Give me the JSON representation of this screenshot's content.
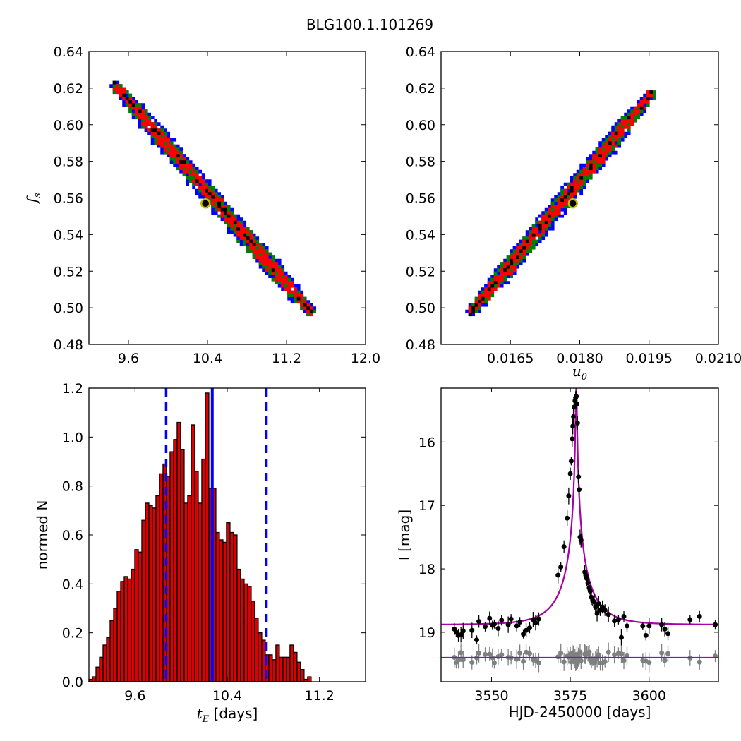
{
  "figure_title": "BLG100.1.101269",
  "colors": {
    "blue": "#0000ff",
    "green": "#008000",
    "red": "#ff0000",
    "black": "#000000",
    "marker_edge": "#bfbf00",
    "hist_fill": "#dd0000",
    "model": "#aa00aa",
    "baseline_gray": "#808080"
  },
  "chart_data": [
    {
      "panel": "top-left",
      "type": "heatmap",
      "xlabel": "",
      "ylabel_symbol": "f",
      "ylabel_sub": "s",
      "xlim": [
        9.2,
        12.0
      ],
      "ylim": [
        0.48,
        0.64
      ],
      "xticks": [
        "9.6",
        "10.4",
        "11.2",
        "12.0"
      ],
      "xtick_values": [
        9.6,
        10.4,
        11.2,
        12.0
      ],
      "yticks": [
        "0.48",
        "0.50",
        "0.52",
        "0.54",
        "0.56",
        "0.58",
        "0.60",
        "0.62",
        "0.64"
      ],
      "ytick_values": [
        0.48,
        0.5,
        0.52,
        0.54,
        0.56,
        0.58,
        0.6,
        0.62,
        0.64
      ],
      "confidence_band": {
        "start": [
          9.45,
          0.622
        ],
        "end": [
          11.45,
          0.497
        ],
        "levels": [
          "blue",
          "green",
          "red",
          "black"
        ]
      },
      "best_fit": {
        "x": 10.38,
        "y": 0.557
      }
    },
    {
      "panel": "top-right",
      "type": "heatmap",
      "xlabel_symbol": "u",
      "xlabel_sub": "0",
      "xlim": [
        0.015,
        0.021
      ],
      "ylim": [
        0.48,
        0.64
      ],
      "xticks": [
        "0.0165",
        "0.0180",
        "0.0195",
        "0.0210"
      ],
      "xtick_values": [
        0.0165,
        0.018,
        0.0195,
        0.021
      ],
      "yticks": [
        "0.48",
        "0.50",
        "0.52",
        "0.54",
        "0.56",
        "0.58",
        "0.60",
        "0.62",
        "0.64"
      ],
      "ytick_values": [
        0.48,
        0.5,
        0.52,
        0.54,
        0.56,
        0.58,
        0.6,
        0.62,
        0.64
      ],
      "confidence_band": {
        "start": [
          0.01565,
          0.497
        ],
        "end": [
          0.0196,
          0.618
        ],
        "levels": [
          "blue",
          "green",
          "red",
          "black"
        ]
      },
      "best_fit": {
        "x": 0.01785,
        "y": 0.557
      }
    },
    {
      "panel": "bottom-left",
      "type": "bar",
      "xlabel_symbol": "t",
      "xlabel_sub": "E",
      "xlabel_text": " [days]",
      "ylabel": "normed N",
      "xlim": [
        9.2,
        11.6
      ],
      "ylim": [
        0.0,
        1.2
      ],
      "xticks": [
        "9.6",
        "10.4",
        "11.2"
      ],
      "xtick_values": [
        9.6,
        10.4,
        11.2
      ],
      "yticks": [
        "0.0",
        "0.2",
        "0.4",
        "0.6",
        "0.8",
        "1.0",
        "1.2"
      ],
      "ytick_values": [
        0.0,
        0.2,
        0.4,
        0.6,
        0.8,
        1.0,
        1.2
      ],
      "bin_start": 9.2,
      "bin_width": 0.0306,
      "values": [
        0.01,
        0.02,
        0.06,
        0.1,
        0.15,
        0.18,
        0.25,
        0.3,
        0.37,
        0.41,
        0.43,
        0.42,
        0.46,
        0.54,
        0.53,
        0.66,
        0.73,
        0.72,
        0.71,
        0.76,
        0.85,
        0.89,
        0.84,
        0.94,
        0.99,
        1.06,
        0.95,
        0.73,
        0.76,
        1.05,
        0.86,
        0.73,
        0.91,
        1.18,
        0.79,
        0.79,
        0.61,
        0.58,
        0.57,
        0.65,
        0.61,
        0.6,
        0.46,
        0.42,
        0.4,
        0.39,
        0.33,
        0.26,
        0.2,
        0.17,
        0.11,
        0.11,
        0.09,
        0.15,
        0.1,
        0.1,
        0.1,
        0.15,
        0.12,
        0.08,
        0.05,
        0.01,
        0.02
      ],
      "median": 10.27,
      "lower": 9.87,
      "upper": 10.74
    },
    {
      "panel": "bottom-right",
      "type": "scatter",
      "xlabel": "HJD-2450000 [days]",
      "ylabel": "I [mag]",
      "xlim": [
        3534,
        3622
      ],
      "ylim": [
        19.78,
        15.15
      ],
      "xticks": [
        "3550",
        "3575",
        "3600"
      ],
      "xtick_values": [
        3550,
        3575,
        3600
      ],
      "yticks": [
        "16",
        "17",
        "18",
        "19"
      ],
      "ytick_values": [
        16,
        17,
        18,
        19
      ],
      "model": {
        "t0": 3576.9,
        "u0": 0.0179,
        "tE": 10.3,
        "fs": 0.557,
        "baseline": 18.88
      },
      "residual_level": 19.4,
      "observations": [
        [
          3538.2,
          18.95
        ],
        [
          3538.8,
          19.0
        ],
        [
          3539.5,
          19.05
        ],
        [
          3540.3,
          19.04
        ],
        [
          3541.0,
          18.98
        ],
        [
          3543.8,
          18.97
        ],
        [
          3545.3,
          19.12
        ],
        [
          3546.0,
          18.83
        ],
        [
          3548.0,
          18.91
        ],
        [
          3549.4,
          18.78
        ],
        [
          3550.3,
          18.89
        ],
        [
          3550.9,
          18.87
        ],
        [
          3552.1,
          18.94
        ],
        [
          3553.2,
          18.81
        ],
        [
          3555.3,
          18.88
        ],
        [
          3556.2,
          18.79
        ],
        [
          3558.0,
          18.9
        ],
        [
          3559.0,
          18.84
        ],
        [
          3560.1,
          19.03
        ],
        [
          3561.0,
          18.97
        ],
        [
          3562.1,
          18.93
        ],
        [
          3563.2,
          18.8
        ],
        [
          3564.0,
          18.85
        ],
        [
          3565.0,
          18.79
        ],
        [
          3571.1,
          18.1
        ],
        [
          3572.0,
          17.97
        ],
        [
          3573.0,
          17.65
        ],
        [
          3574.0,
          17.2
        ],
        [
          3574.5,
          16.85
        ],
        [
          3575.0,
          16.5
        ],
        [
          3575.3,
          16.3
        ],
        [
          3575.6,
          15.95
        ],
        [
          3575.8,
          15.75
        ],
        [
          3576.0,
          15.6
        ],
        [
          3576.2,
          15.45
        ],
        [
          3576.5,
          15.35
        ],
        [
          3576.7,
          15.3
        ],
        [
          3576.9,
          15.28
        ],
        [
          3577.1,
          15.4
        ],
        [
          3577.3,
          15.7
        ],
        [
          3577.6,
          16.55
        ],
        [
          3577.8,
          16.75
        ],
        [
          3578.1,
          17.5
        ],
        [
          3578.4,
          17.55
        ],
        [
          3579.6,
          18.05
        ],
        [
          3579.9,
          18.1
        ],
        [
          3580.2,
          18.15
        ],
        [
          3580.6,
          18.22
        ],
        [
          3581.0,
          18.3
        ],
        [
          3581.3,
          18.35
        ],
        [
          3581.7,
          18.45
        ],
        [
          3582.1,
          18.5
        ],
        [
          3582.6,
          18.52
        ],
        [
          3583.0,
          18.6
        ],
        [
          3583.5,
          18.7
        ],
        [
          3584.0,
          18.55
        ],
        [
          3584.5,
          18.65
        ],
        [
          3585.2,
          18.6
        ],
        [
          3586.0,
          18.65
        ],
        [
          3587.1,
          18.72
        ],
        [
          3589.0,
          18.82
        ],
        [
          3590.3,
          18.8
        ],
        [
          3591.2,
          19.08
        ],
        [
          3592.0,
          18.75
        ],
        [
          3593.0,
          18.9
        ],
        [
          3598.0,
          18.9
        ],
        [
          3599.0,
          19.05
        ],
        [
          3600.0,
          18.9
        ],
        [
          3604.0,
          18.88
        ],
        [
          3605.0,
          18.95
        ],
        [
          3606.0,
          19.02
        ],
        [
          3613.0,
          18.8
        ],
        [
          3616.0,
          18.75
        ],
        [
          3621.0,
          18.88
        ]
      ]
    }
  ]
}
